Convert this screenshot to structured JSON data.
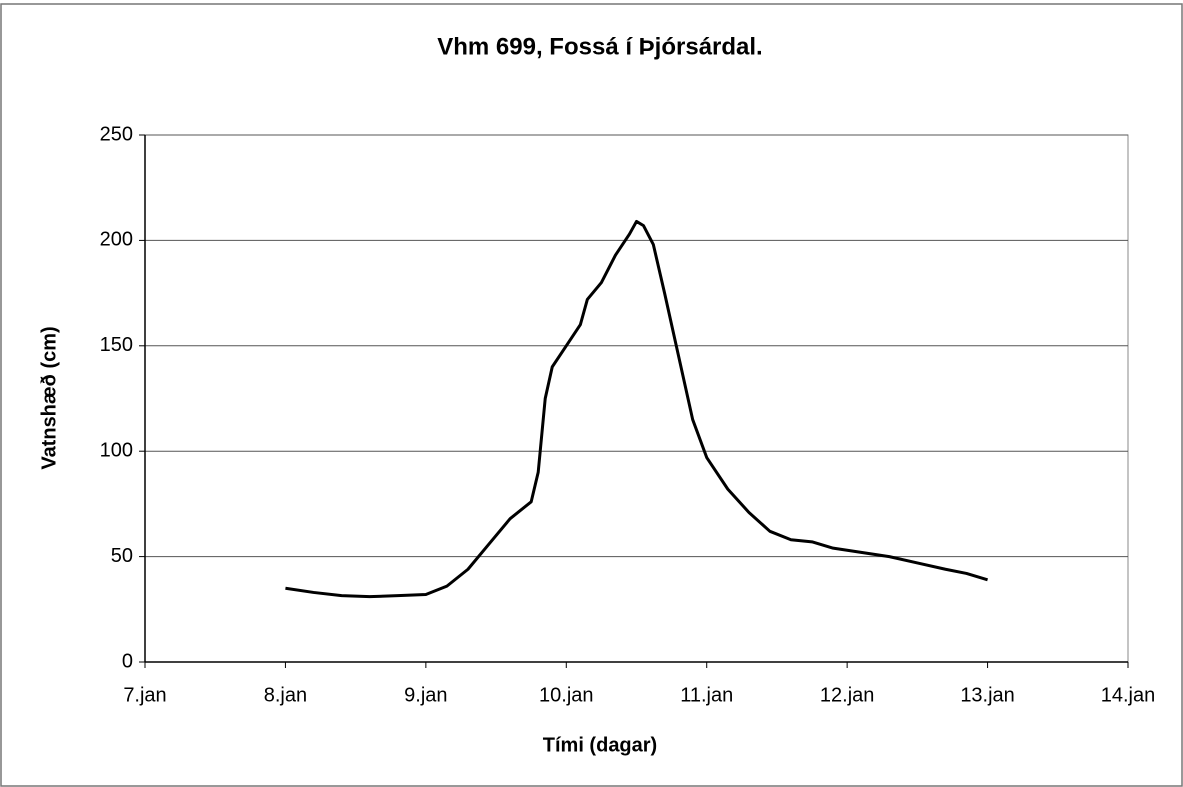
{
  "chart_data": {
    "type": "line",
    "title": "Vhm 699, Fossá í Þjórsárdal.",
    "xlabel": "Tími (dagar)",
    "ylabel": "Vatnshæð (cm)",
    "x": [
      8.0,
      8.2,
      8.4,
      8.6,
      8.8,
      9.0,
      9.15,
      9.3,
      9.45,
      9.6,
      9.75,
      9.8,
      9.85,
      9.9,
      10.0,
      10.1,
      10.15,
      10.25,
      10.35,
      10.45,
      10.5,
      10.55,
      10.62,
      10.7,
      10.8,
      10.9,
      11.0,
      11.15,
      11.3,
      11.45,
      11.6,
      11.75,
      11.9,
      12.1,
      12.3,
      12.5,
      12.7,
      12.85,
      13.0
    ],
    "series": [
      {
        "name": null,
        "color": "#000000",
        "values": [
          35,
          33,
          31.5,
          31,
          31.5,
          32,
          36,
          44,
          56,
          68,
          76,
          90,
          125,
          140,
          150,
          160,
          172,
          180,
          193,
          203,
          209,
          207,
          198,
          175,
          145,
          115,
          97,
          82,
          71,
          62,
          58,
          57,
          54,
          52,
          50,
          47,
          44,
          42,
          39
        ]
      }
    ],
    "xlim": [
      7,
      14
    ],
    "xticks": [
      {
        "value": 7,
        "label": "7.jan"
      },
      {
        "value": 8,
        "label": "8.jan"
      },
      {
        "value": 9,
        "label": "9.jan"
      },
      {
        "value": 10,
        "label": "10.jan"
      },
      {
        "value": 11,
        "label": "11.jan"
      },
      {
        "value": 12,
        "label": "12.jan"
      },
      {
        "value": 13,
        "label": "13.jan"
      },
      {
        "value": 14,
        "label": "14.jan"
      }
    ],
    "ylim": [
      0,
      250
    ],
    "yticks": [
      0,
      50,
      100,
      150,
      200,
      250
    ],
    "grid": true
  }
}
